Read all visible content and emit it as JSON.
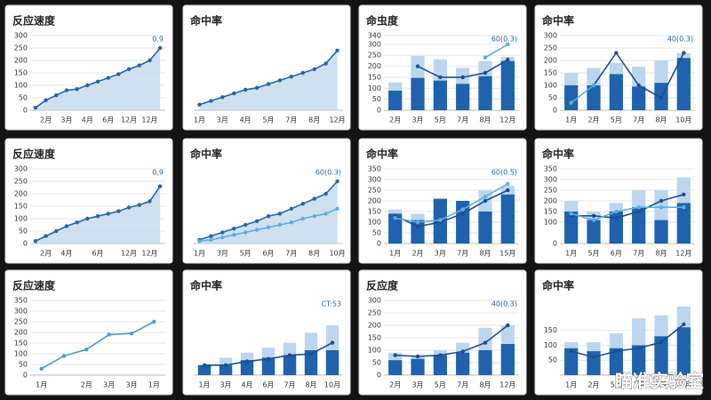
{
  "chart_data": [
    {
      "type": "area",
      "title": "反应速度",
      "annotation": "0,9",
      "ylim": [
        0,
        300
      ],
      "yticks": [
        0,
        50,
        100,
        150,
        200,
        250,
        300
      ],
      "categories": [
        null,
        "2月",
        null,
        "3月",
        null,
        "4月",
        null,
        "6月",
        null,
        "12月",
        null,
        "12月",
        null
      ],
      "series": [
        {
          "kind": "area",
          "color": "#2565a8",
          "fill": "#c7daef",
          "values": [
            10,
            40,
            60,
            80,
            85,
            100,
            115,
            130,
            145,
            165,
            180,
            200,
            250
          ]
        }
      ]
    },
    {
      "type": "area",
      "title": "命中率",
      "ylim": [
        0,
        200
      ],
      "categories": [
        "1月",
        null,
        "3月",
        null,
        "4月",
        null,
        "5月",
        null,
        "7月",
        null,
        "8月",
        null,
        "12月"
      ],
      "series": [
        {
          "kind": "area",
          "color": "#2565a8",
          "fill": "#c7daef",
          "values": [
            15,
            25,
            35,
            45,
            55,
            60,
            70,
            80,
            90,
            100,
            110,
            125,
            160
          ]
        }
      ]
    },
    {
      "type": "combo",
      "title": "命虫度",
      "annotation": "60(0.3)",
      "ylim": [
        0,
        340
      ],
      "yticks": [
        0,
        50,
        100,
        150,
        200,
        250,
        300,
        340
      ],
      "categories": [
        "2月",
        "3月",
        "5月",
        "7月",
        "8月",
        "12月"
      ],
      "series": [
        {
          "kind": "bar",
          "color": "#bcd6f0",
          "values": [
            127,
            247,
            232,
            193,
            224,
            243
          ]
        },
        {
          "kind": "bar",
          "color": "#1f62ad",
          "values": [
            89,
            147,
            135,
            120,
            155,
            224
          ]
        },
        {
          "kind": "line",
          "color": "#1b4f8f",
          "values": [
            null,
            200,
            150,
            150,
            170,
            230
          ]
        },
        {
          "kind": "line",
          "color": "#5ab0e0",
          "values": [
            null,
            null,
            null,
            null,
            240,
            300
          ]
        }
      ]
    },
    {
      "type": "combo",
      "title": "命中率",
      "annotation": "40(0.3)",
      "ylim": [
        0,
        300
      ],
      "yticks": [
        0,
        50,
        100,
        150,
        200,
        250,
        300
      ],
      "categories": [
        "1月",
        "2月",
        "5月",
        "7月",
        "8月",
        "10月"
      ],
      "series": [
        {
          "kind": "bar",
          "color": "#bcd6f0",
          "values": [
            150,
            170,
            190,
            175,
            200,
            230
          ]
        },
        {
          "kind": "bar",
          "color": "#1f62ad",
          "values": [
            100,
            100,
            145,
            95,
            110,
            210
          ]
        },
        {
          "kind": "line",
          "color": "#1b4f8f",
          "values": [
            null,
            100,
            230,
            100,
            50,
            230
          ]
        },
        {
          "kind": "line",
          "color": "#5ab0e0",
          "values": [
            30,
            100,
            null,
            null,
            null,
            null
          ]
        }
      ]
    },
    {
      "type": "area",
      "title": "反应速度",
      "annotation": "0,9",
      "ylim": [
        0,
        300
      ],
      "yticks": [
        0,
        50,
        100,
        150,
        200,
        250,
        300
      ],
      "categories": [
        null,
        "2月",
        null,
        "4月",
        null,
        null,
        "6月",
        null,
        null,
        "12月",
        null,
        "12月",
        null
      ],
      "series": [
        {
          "kind": "area",
          "color": "#2565a8",
          "fill": "#c7daef",
          "values": [
            10,
            30,
            50,
            70,
            85,
            100,
            110,
            120,
            130,
            145,
            155,
            170,
            230
          ]
        }
      ]
    },
    {
      "type": "area",
      "title": "命中率",
      "annotation": "60(0.3)",
      "ylim": [
        0,
        300
      ],
      "categories": [
        "1月",
        null,
        "3月",
        null,
        "5月",
        null,
        "6月",
        null,
        "7月",
        null,
        "8月",
        null,
        "10月"
      ],
      "series": [
        {
          "kind": "area",
          "color": "#2565a8",
          "fill": "#c7daef",
          "values": [
            15,
            30,
            45,
            60,
            75,
            90,
            110,
            120,
            140,
            160,
            180,
            200,
            250
          ]
        },
        {
          "kind": "line",
          "color": "#5ab0e0",
          "values": [
            10,
            15,
            25,
            35,
            45,
            55,
            65,
            75,
            85,
            100,
            110,
            120,
            140
          ]
        }
      ]
    },
    {
      "type": "combo",
      "title": "命中率",
      "annotation": "60(0.5)",
      "ylim": [
        0,
        350
      ],
      "yticks": [
        0,
        50,
        100,
        150,
        200,
        250,
        300,
        350
      ],
      "categories": [
        "1月",
        "2月",
        "3月",
        "7月",
        "8月",
        "15月"
      ],
      "series": [
        {
          "kind": "bar",
          "color": "#bcd6f0",
          "values": [
            160,
            140,
            160,
            180,
            250,
            270
          ]
        },
        {
          "kind": "bar",
          "color": "#1f62ad",
          "values": [
            140,
            110,
            210,
            200,
            150,
            230
          ]
        },
        {
          "kind": "line",
          "color": "#1b4f8f",
          "values": [
            130,
            80,
            100,
            140,
            200,
            250
          ]
        },
        {
          "kind": "line",
          "color": "#5ab0e0",
          "values": [
            120,
            100,
            110,
            160,
            220,
            280
          ]
        }
      ]
    },
    {
      "type": "combo",
      "title": "命中率",
      "ylim": [
        0,
        350
      ],
      "yticks": [
        0,
        100,
        150,
        200,
        250,
        300,
        350
      ],
      "categories": [
        "1月",
        "5月",
        "6月",
        "7月",
        "8月",
        "12月"
      ],
      "series": [
        {
          "kind": "bar",
          "color": "#bcd6f0",
          "values": [
            200,
            150,
            190,
            250,
            250,
            310
          ]
        },
        {
          "kind": "bar",
          "color": "#1f62ad",
          "values": [
            150,
            110,
            150,
            170,
            110,
            190
          ]
        },
        {
          "kind": "line",
          "color": "#1b4f8f",
          "values": [
            130,
            130,
            120,
            150,
            200,
            230
          ]
        },
        {
          "kind": "line",
          "color": "#5ab0e0",
          "values": [
            140,
            110,
            150,
            170,
            170,
            170
          ]
        }
      ]
    },
    {
      "type": "line",
      "title": "反应速度",
      "ylim": [
        0,
        350
      ],
      "yticks": [
        0,
        50,
        100,
        150,
        200,
        250,
        300,
        350
      ],
      "categories": [
        "1月",
        null,
        "2月",
        "3月",
        "3月",
        "1月"
      ],
      "series": [
        {
          "kind": "line",
          "color": "#4a9ad6",
          "values": [
            30,
            90,
            120,
            190,
            195,
            250
          ]
        }
      ]
    },
    {
      "type": "combo",
      "title": "命中率",
      "annotation": "CT:53",
      "ylim": [
        0,
        300
      ],
      "categories": [
        "1月",
        "3月",
        "4月",
        "6月",
        "7月",
        "8月",
        "10月"
      ],
      "series": [
        {
          "kind": "bar",
          "color": "#bcd6f0",
          "values": [
            40,
            70,
            90,
            110,
            130,
            170,
            200
          ]
        },
        {
          "kind": "bar",
          "color": "#1f62ad",
          "values": [
            40,
            40,
            60,
            70,
            80,
            100,
            100
          ]
        },
        {
          "kind": "line",
          "color": "#1b4f8f",
          "values": [
            40,
            40,
            55,
            65,
            80,
            85,
            130
          ]
        }
      ]
    },
    {
      "type": "combo",
      "title": "反应度",
      "annotation": "40(0.3)",
      "ylim": [
        0,
        300
      ],
      "yticks": [
        0,
        50,
        100,
        150,
        200,
        250,
        300
      ],
      "categories": [
        "2月",
        "3月",
        "5月",
        "7月",
        "8月",
        "12月"
      ],
      "series": [
        {
          "kind": "bar",
          "color": "#bcd6f0",
          "values": [
            90,
            80,
            100,
            130,
            190,
            200
          ]
        },
        {
          "kind": "bar",
          "color": "#1f62ad",
          "values": [
            60,
            65,
            80,
            90,
            100,
            125
          ]
        },
        {
          "kind": "line",
          "color": "#1b4f8f",
          "values": [
            80,
            75,
            80,
            95,
            130,
            200
          ]
        }
      ]
    },
    {
      "type": "combo",
      "title": "命中率",
      "ylim": [
        0,
        250
      ],
      "yticks": [
        50,
        100,
        150
      ],
      "categories": [
        "1月",
        "2月",
        "5月",
        "7月",
        "8月",
        "12月"
      ],
      "series": [
        {
          "kind": "bar",
          "color": "#bcd6f0",
          "values": [
            110,
            110,
            140,
            190,
            200,
            230
          ]
        },
        {
          "kind": "bar",
          "color": "#1f62ad",
          "values": [
            90,
            80,
            90,
            100,
            130,
            160
          ]
        },
        {
          "kind": "line",
          "color": "#1b4f8f",
          "values": [
            80,
            60,
            80,
            90,
            110,
            170
          ]
        }
      ]
    }
  ],
  "watermark": "瞄准实验室"
}
